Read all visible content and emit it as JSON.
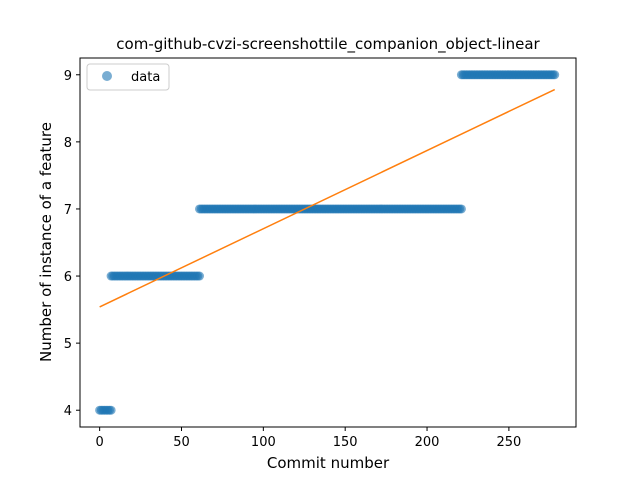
{
  "chart_data": {
    "type": "scatter",
    "title": "com-github-cvzi-screenshottile_companion_object-linear",
    "xlabel": "Commit number",
    "ylabel": "Number of instance of a feature",
    "xlim": [
      -12,
      291
    ],
    "ylim": [
      3.75,
      9.25
    ],
    "xticks": [
      0,
      50,
      100,
      150,
      200,
      250
    ],
    "yticks": [
      4,
      5,
      6,
      7,
      8,
      9
    ],
    "grid": false,
    "legend": {
      "placement": "upper-left",
      "entries": [
        "data"
      ]
    },
    "colors": {
      "data": "#1f77b4",
      "fit": "#ff7f0e"
    },
    "series": [
      {
        "name": "data",
        "kind": "points",
        "segments": [
          {
            "x_start": 0,
            "x_end": 7,
            "y": 4
          },
          {
            "x_start": 7,
            "x_end": 61,
            "y": 6
          },
          {
            "x_start": 61,
            "x_end": 221,
            "y": 7
          },
          {
            "x_start": 221,
            "x_end": 278,
            "y": 9
          }
        ]
      },
      {
        "kind": "line",
        "x": [
          0,
          278
        ],
        "y": [
          5.54,
          8.78
        ]
      }
    ]
  }
}
